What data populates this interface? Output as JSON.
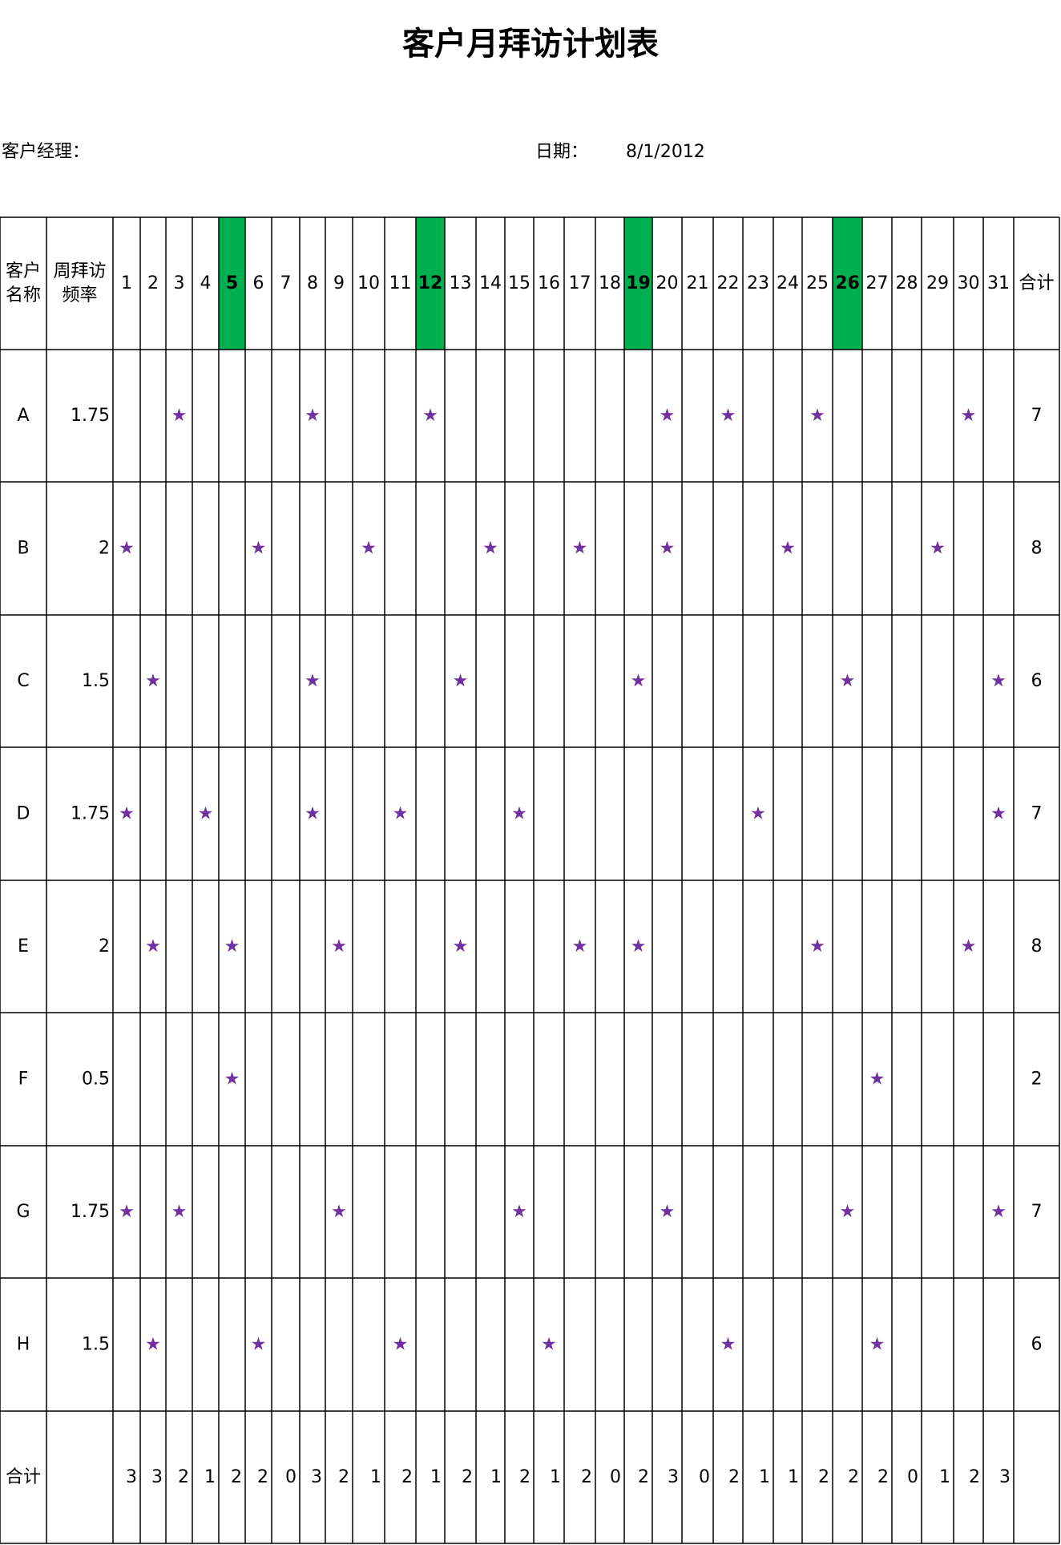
{
  "title": "客户月拜访计划表",
  "manager_label": "客户经理：",
  "date_label": "日期：",
  "date_value": "8/1/2012",
  "headers": {
    "customer": [
      "客户",
      "名称"
    ],
    "frequency": [
      "周拜访",
      "频率"
    ],
    "total": "合计"
  },
  "days": [
    "1",
    "2",
    "3",
    "4",
    "5",
    "6",
    "7",
    "8",
    "9",
    "10",
    "11",
    "12",
    "13",
    "14",
    "15",
    "16",
    "17",
    "18",
    "19",
    "20",
    "21",
    "22",
    "23",
    "24",
    "25",
    "26",
    "27",
    "28",
    "29",
    "30",
    "31"
  ],
  "highlighted_days": [
    "5",
    "12",
    "19",
    "26"
  ],
  "highlight_color": "#00b050",
  "star_color": "#7030a0",
  "mark_symbol": "★",
  "rows": [
    {
      "name": "A",
      "frequency": "1.75",
      "visits": [
        3,
        8,
        12,
        20,
        22,
        25,
        30
      ],
      "total": "7"
    },
    {
      "name": "B",
      "frequency": "2",
      "visits": [
        1,
        6,
        10,
        14,
        17,
        20,
        24,
        29
      ],
      "total": "8"
    },
    {
      "name": "C",
      "frequency": "1.5",
      "visits": [
        2,
        8,
        13,
        19,
        26,
        31
      ],
      "total": "6"
    },
    {
      "name": "D",
      "frequency": "1.75",
      "visits": [
        1,
        4,
        8,
        11,
        15,
        23,
        31
      ],
      "total": "7"
    },
    {
      "name": "E",
      "frequency": "2",
      "visits": [
        2,
        5,
        9,
        13,
        17,
        19,
        25,
        30
      ],
      "total": "8"
    },
    {
      "name": "F",
      "frequency": "0.5",
      "visits": [
        5,
        27
      ],
      "total": "2"
    },
    {
      "name": "G",
      "frequency": "1.75",
      "visits": [
        1,
        3,
        9,
        15,
        20,
        26,
        31
      ],
      "total": "7"
    },
    {
      "name": "H",
      "frequency": "1.5",
      "visits": [
        2,
        6,
        11,
        16,
        22,
        27
      ],
      "total": "6"
    }
  ],
  "footer": {
    "label": "合计",
    "totals": [
      "3",
      "3",
      "2",
      "1",
      "2",
      "2",
      "0",
      "3",
      "2",
      "1",
      "2",
      "1",
      "2",
      "1",
      "2",
      "1",
      "2",
      "0",
      "2",
      "3",
      "0",
      "2",
      "1",
      "1",
      "2",
      "2",
      "2",
      "0",
      "1",
      "2",
      "3"
    ]
  }
}
